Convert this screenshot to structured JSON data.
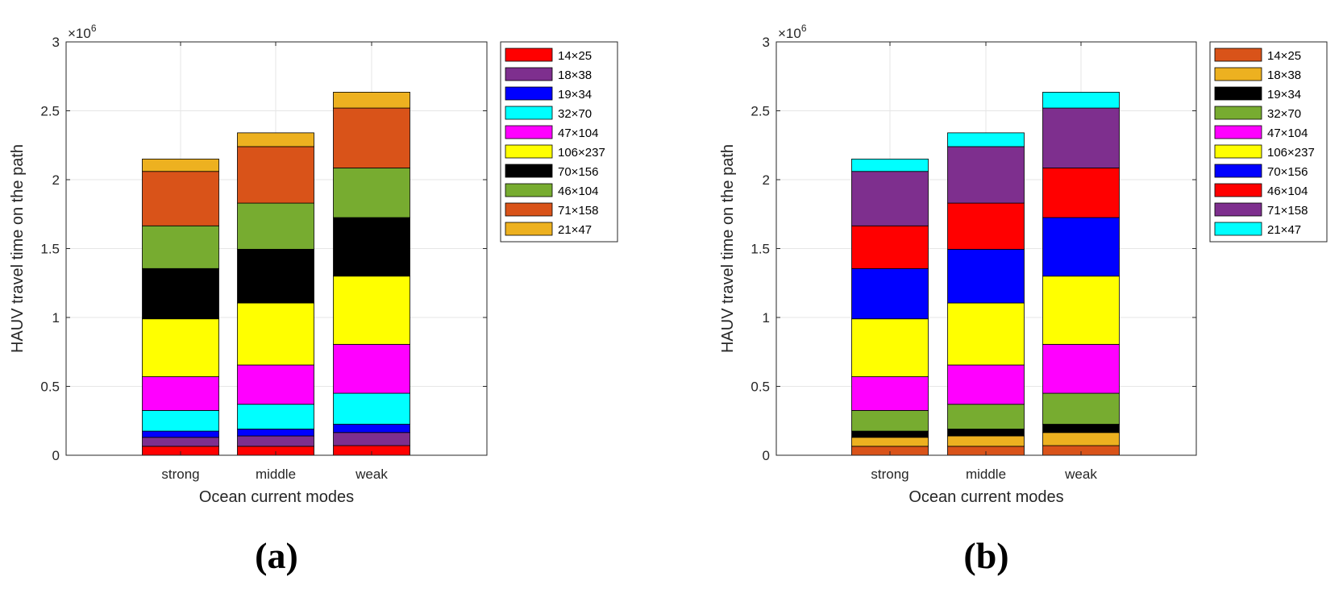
{
  "figure": {
    "panel_labels": [
      "(a)",
      "(b)"
    ]
  },
  "chart_data": [
    {
      "type": "bar",
      "stacked": true,
      "panel_label": "(a)",
      "title": "",
      "xlabel": "Ocean current modes",
      "ylabel": "HAUV travel time on the path",
      "y_exponent_label": "×10",
      "y_exponent_power": "6",
      "ylim": [
        0,
        3
      ],
      "yticks": [
        0,
        0.5,
        1,
        1.5,
        2,
        2.5,
        3
      ],
      "ytick_labels": [
        "0",
        "0.5",
        "1",
        "1.5",
        "2",
        "2.5",
        "3"
      ],
      "grid": true,
      "legend_position": "outside-right-top",
      "categories": [
        "strong",
        "middle",
        "weak"
      ],
      "series": [
        {
          "name": "14×25",
          "color": "#ff0000",
          "values": [
            0.065,
            0.065,
            0.07
          ]
        },
        {
          "name": "18×38",
          "color": "#7e2f8e",
          "values": [
            0.065,
            0.075,
            0.095
          ]
        },
        {
          "name": "19×34",
          "color": "#0000ff",
          "values": [
            0.045,
            0.05,
            0.06
          ]
        },
        {
          "name": "32×70",
          "color": "#00ffff",
          "values": [
            0.15,
            0.18,
            0.225
          ]
        },
        {
          "name": "47×104",
          "color": "#ff00ff",
          "values": [
            0.245,
            0.285,
            0.355
          ]
        },
        {
          "name": "106×237",
          "color": "#ffff00",
          "values": [
            0.42,
            0.45,
            0.495
          ]
        },
        {
          "name": "70×156",
          "color": "#000000",
          "values": [
            0.365,
            0.39,
            0.425
          ]
        },
        {
          "name": "46×104",
          "color": "#77ac30",
          "values": [
            0.31,
            0.335,
            0.36
          ]
        },
        {
          "name": "71×158",
          "color": "#d95319",
          "values": [
            0.395,
            0.41,
            0.435
          ]
        },
        {
          "name": "21×47",
          "color": "#edb120",
          "values": [
            0.09,
            0.1,
            0.115
          ]
        }
      ]
    },
    {
      "type": "bar",
      "stacked": true,
      "panel_label": "(b)",
      "title": "",
      "xlabel": "Ocean current modes",
      "ylabel": "HAUV travel time on the path",
      "y_exponent_label": "×10",
      "y_exponent_power": "6",
      "ylim": [
        0,
        3
      ],
      "yticks": [
        0,
        0.5,
        1,
        1.5,
        2,
        2.5,
        3
      ],
      "ytick_labels": [
        "0",
        "0.5",
        "1",
        "1.5",
        "2",
        "2.5",
        "3"
      ],
      "grid": true,
      "legend_position": "outside-right-top",
      "categories": [
        "strong",
        "middle",
        "weak"
      ],
      "series": [
        {
          "name": "14×25",
          "color": "#d95319",
          "values": [
            0.065,
            0.065,
            0.07
          ]
        },
        {
          "name": "18×38",
          "color": "#edb120",
          "values": [
            0.065,
            0.075,
            0.095
          ]
        },
        {
          "name": "19×34",
          "color": "#000000",
          "values": [
            0.045,
            0.05,
            0.06
          ]
        },
        {
          "name": "32×70",
          "color": "#77ac30",
          "values": [
            0.15,
            0.18,
            0.225
          ]
        },
        {
          "name": "47×104",
          "color": "#ff00ff",
          "values": [
            0.245,
            0.285,
            0.355
          ]
        },
        {
          "name": "106×237",
          "color": "#ffff00",
          "values": [
            0.42,
            0.45,
            0.495
          ]
        },
        {
          "name": "70×156",
          "color": "#0000ff",
          "values": [
            0.365,
            0.39,
            0.425
          ]
        },
        {
          "name": "46×104",
          "color": "#ff0000",
          "values": [
            0.31,
            0.335,
            0.36
          ]
        },
        {
          "name": "71×158",
          "color": "#7e2f8e",
          "values": [
            0.395,
            0.41,
            0.435
          ]
        },
        {
          "name": "21×47",
          "color": "#00ffff",
          "values": [
            0.09,
            0.1,
            0.115
          ]
        }
      ]
    }
  ]
}
